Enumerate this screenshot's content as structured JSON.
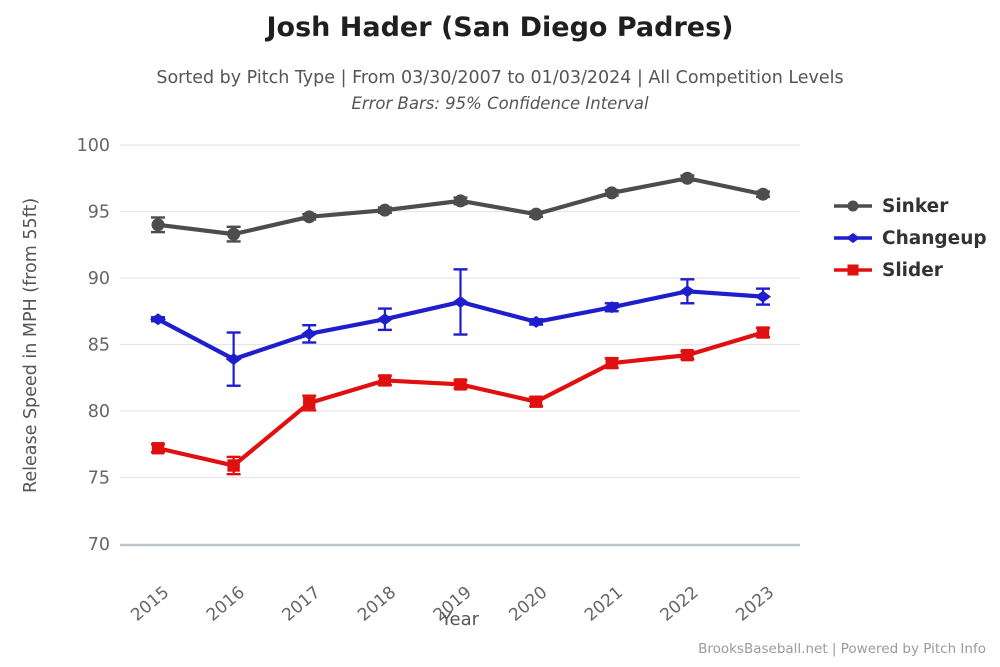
{
  "chart_data": {
    "type": "line",
    "title": "Josh Hader (San Diego Padres)",
    "subtitle": "Sorted by Pitch Type | From 03/30/2007 to 01/03/2024 | All Competition Levels",
    "annotation": "Error Bars: 95% Confidence Interval",
    "xlabel": "Year",
    "ylabel": "Release Speed in MPH (from 55ft)",
    "x": [
      "2015",
      "2016",
      "2017",
      "2018",
      "2019",
      "2020",
      "2021",
      "2022",
      "2023"
    ],
    "yticks": [
      70,
      75,
      80,
      85,
      90,
      95,
      100
    ],
    "ylim": [
      70,
      100
    ],
    "grid": true,
    "legend_position": "right",
    "error_bars": "95% Confidence Interval",
    "series": [
      {
        "name": "Sinker",
        "color": "#4d4d4d",
        "marker": "circle",
        "values": [
          94.0,
          93.3,
          94.6,
          95.1,
          95.8,
          94.8,
          96.4,
          97.5,
          96.3
        ],
        "error": [
          0.55,
          0.55,
          0.2,
          0.2,
          0.25,
          0.2,
          0.2,
          0.2,
          0.2
        ]
      },
      {
        "name": "Changeup",
        "color": "#1e1ecd",
        "marker": "diamond",
        "values": [
          86.9,
          83.9,
          85.8,
          86.9,
          88.2,
          86.7,
          87.8,
          89.0,
          88.6
        ],
        "error": [
          0.15,
          2.0,
          0.65,
          0.8,
          2.45,
          0.2,
          0.3,
          0.9,
          0.6
        ]
      },
      {
        "name": "Slider",
        "color": "#e11010",
        "marker": "square",
        "values": [
          77.2,
          75.9,
          80.6,
          82.3,
          82.0,
          80.7,
          83.6,
          84.2,
          85.9
        ],
        "error": [
          0.3,
          0.65,
          0.55,
          0.35,
          0.3,
          0.35,
          0.35,
          0.3,
          0.35
        ]
      }
    ],
    "colors": {
      "grid_line": "#e6e6e6",
      "axis_line": "#b9c6cf",
      "tick_label": "#666666",
      "legend_text": "#333333"
    }
  },
  "footer": {
    "credit": "BrooksBaseball.net | Powered by Pitch Info"
  }
}
